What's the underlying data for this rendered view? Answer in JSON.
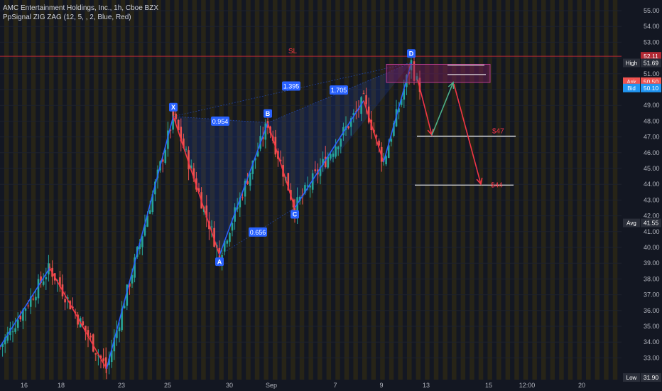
{
  "legend": {
    "symbol_line": "AMC Entertainment Holdings, Inc., 1h, Cboe BZX",
    "indicator_line": "PpSignal ZIG ZAG (12, 5, , 2, Blue, Red)"
  },
  "colors": {
    "background": "#131722",
    "candle_up": "#26a69a",
    "candle_down": "#ef5350",
    "zigzag_up": "#2962ff",
    "zigzag_down": "#f23645",
    "session_band": "#2a2616",
    "sl_line": "#b22833",
    "target_line": "#ffffff",
    "pattern_fill": "#2962ff",
    "box_fill": "#7b1e5e",
    "arrow_green": "#4caf8a",
    "arrow_red": "#f23645"
  },
  "chart_data": {
    "type": "candlestick",
    "x_axis": {
      "tick_labels": [
        "16",
        "18",
        "23",
        "25",
        "30",
        "Sep",
        "7",
        "9",
        "13",
        "15",
        "12:00",
        "20"
      ]
    },
    "y_axis": {
      "range": [
        31.9,
        55.4
      ],
      "tick_labels": [
        "55.00",
        "54.00",
        "53.00",
        "52.00",
        "51.00",
        "50.00",
        "49.00",
        "48.00",
        "47.00",
        "46.00",
        "45.00",
        "44.00",
        "43.00",
        "42.00",
        "41.00",
        "40.00",
        "39.00",
        "38.00",
        "37.00",
        "36.00",
        "35.00",
        "34.00",
        "33.00"
      ]
    },
    "price_tags": [
      {
        "key": "",
        "value": "52.11",
        "price": 52.11,
        "color": "#b22833"
      },
      {
        "key": "High",
        "value": "51.69",
        "price": 51.69,
        "color": "#2a2e39"
      },
      {
        "key": "Ask",
        "value": "50.50",
        "price": 50.5,
        "color": "#ef5350"
      },
      {
        "key": "AMC",
        "value": "50.16",
        "price": 50.16,
        "color": "#ef5350"
      },
      {
        "key": "Bid",
        "value": "50.10",
        "price": 50.1,
        "color": "#2196f3"
      },
      {
        "key": "Avg",
        "value": "41.55",
        "price": 41.55,
        "color": "#2a2e39"
      },
      {
        "key": "Low",
        "value": "31.90",
        "price": 31.9,
        "color": "#2a2e39"
      }
    ],
    "harmonic_points": [
      {
        "label": "X",
        "bar": 244,
        "price": 48.3
      },
      {
        "label": "A",
        "bar": 309,
        "price": 39.5
      },
      {
        "label": "B",
        "bar": 377,
        "price": 47.9
      },
      {
        "label": "C",
        "bar": 415,
        "price": 42.5
      },
      {
        "label": "D",
        "bar": 579,
        "price": 51.7
      }
    ],
    "ratios": [
      {
        "label": "0.954",
        "bar": 310,
        "price": 47.98
      },
      {
        "label": "0.656",
        "bar": 363,
        "price": 40.95
      },
      {
        "label": "1.395",
        "bar": 410,
        "price": 50.2
      },
      {
        "label": "1.705",
        "bar": 477,
        "price": 49.95
      }
    ],
    "zigzag": [
      [
        0,
        33.7
      ],
      [
        70,
        38.7
      ],
      [
        150,
        32.3
      ],
      [
        244,
        48.3
      ],
      [
        309,
        39.5
      ],
      [
        377,
        47.9
      ],
      [
        415,
        42.5
      ],
      [
        512,
        49.3
      ],
      [
        540,
        45.4
      ],
      [
        579,
        51.7
      ]
    ],
    "levels": [
      {
        "label": "SL",
        "price": 52.11
      },
      {
        "label": "$47",
        "price": 47.05
      },
      {
        "label": "$44",
        "price": 43.95
      }
    ],
    "target_box": {
      "bar_from": 544,
      "bar_to": 690,
      "price_from": 50.45,
      "price_to": 51.6
    }
  }
}
